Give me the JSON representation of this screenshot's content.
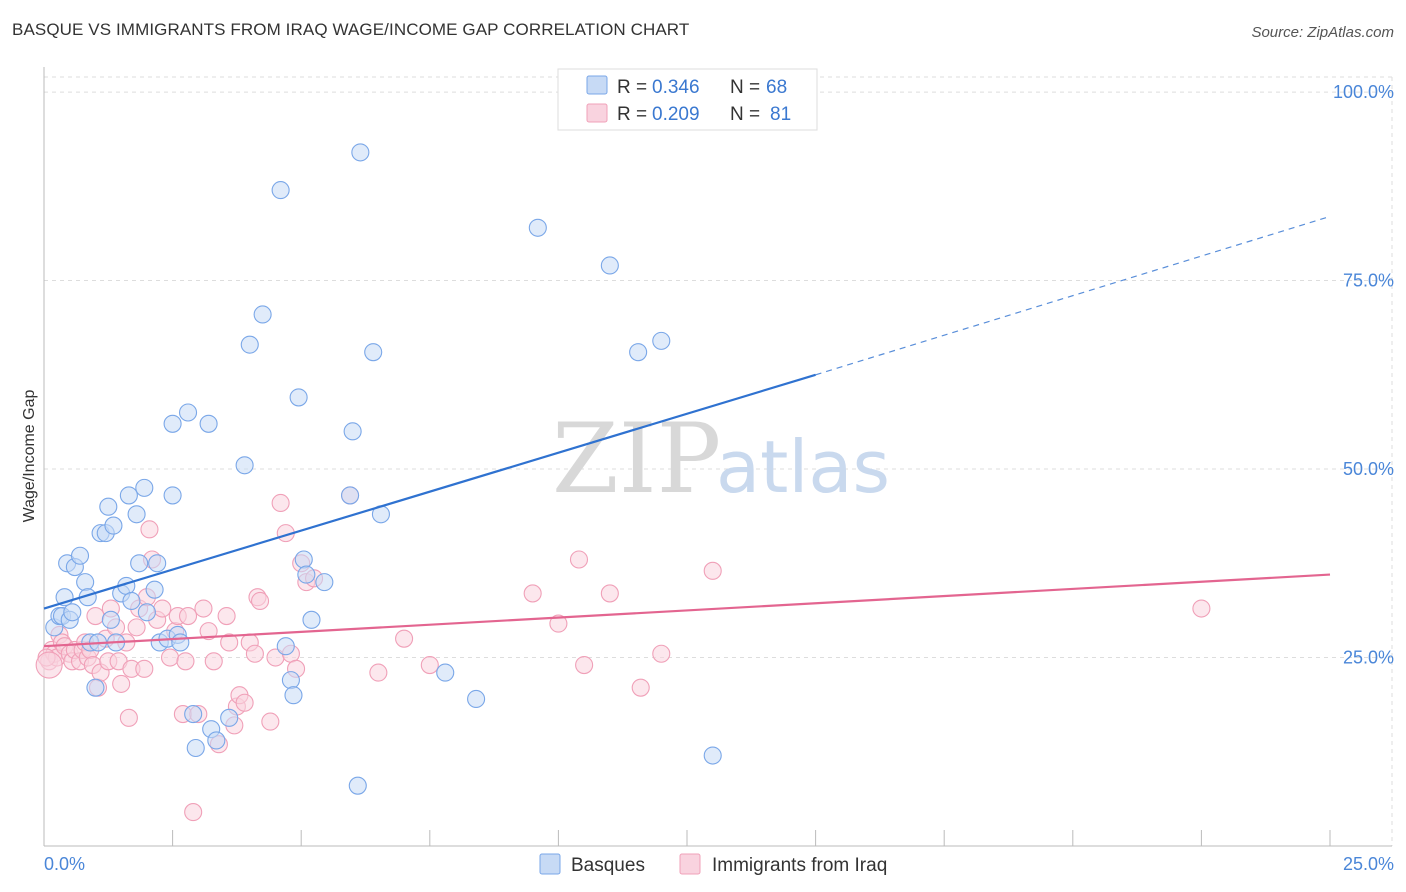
{
  "title": "BASQUE VS IMMIGRANTS FROM IRAQ WAGE/INCOME GAP CORRELATION CHART",
  "source": "Source: ZipAtlas.com",
  "watermark": {
    "zip": "ZIP",
    "atlas": "atlas"
  },
  "chart_data": {
    "type": "scatter",
    "title": "BASQUE VS IMMIGRANTS FROM IRAQ WAGE/INCOME GAP CORRELATION CHART",
    "xlabel": "",
    "ylabel": "Wage/Income Gap",
    "xlim": [
      0,
      25
    ],
    "ylim": [
      0,
      102
    ],
    "x_tick_labels": {
      "left": "0.0%",
      "right": "25.0%"
    },
    "y_ticks": [
      {
        "value": 25,
        "label": "25.0%"
      },
      {
        "value": 50,
        "label": "50.0%"
      },
      {
        "value": 75,
        "label": "75.0%"
      },
      {
        "value": 100,
        "label": "100.0%"
      }
    ],
    "legend": {
      "position": "top-center",
      "rows": [
        {
          "r_label": "R =",
          "r_value": "0.346",
          "n_label": "N =",
          "n_value": "68"
        },
        {
          "r_label": "R =",
          "r_value": "0.209",
          "n_label": "N =",
          "n_value": "81"
        }
      ]
    },
    "series": [
      {
        "name": "Basques",
        "color": "#7aa7e8",
        "fill": "#c7daf5",
        "line_color": "#2f72d0",
        "trend": {
          "x0": 0,
          "y0": 31.5,
          "x1": 15,
          "y1": 62.5,
          "x_extend": 25,
          "y_extend": 83.5
        },
        "points": [
          [
            0.2,
            29
          ],
          [
            0.3,
            30.5
          ],
          [
            0.35,
            30.5
          ],
          [
            0.4,
            33
          ],
          [
            0.45,
            37.5
          ],
          [
            0.5,
            30
          ],
          [
            0.55,
            31
          ],
          [
            0.6,
            37
          ],
          [
            0.8,
            35
          ],
          [
            0.85,
            33
          ],
          [
            0.9,
            27
          ],
          [
            1.0,
            21
          ],
          [
            1.1,
            41.5
          ],
          [
            1.2,
            41.5
          ],
          [
            1.25,
            45
          ],
          [
            1.35,
            42.5
          ],
          [
            1.4,
            27
          ],
          [
            1.5,
            33.5
          ],
          [
            1.6,
            34.5
          ],
          [
            1.65,
            46.5
          ],
          [
            1.8,
            44
          ],
          [
            1.85,
            37.5
          ],
          [
            1.95,
            47.5
          ],
          [
            2.0,
            31
          ],
          [
            2.2,
            37.5
          ],
          [
            2.25,
            27
          ],
          [
            2.4,
            27.5
          ],
          [
            2.5,
            56
          ],
          [
            2.5,
            46.5
          ],
          [
            2.6,
            28
          ],
          [
            2.65,
            27
          ],
          [
            2.8,
            57.5
          ],
          [
            2.9,
            17.5
          ],
          [
            2.95,
            13
          ],
          [
            3.2,
            56
          ],
          [
            3.25,
            15.5
          ],
          [
            3.35,
            14
          ],
          [
            3.9,
            50.5
          ],
          [
            4.0,
            66.5
          ],
          [
            4.25,
            70.5
          ],
          [
            4.6,
            87
          ],
          [
            4.7,
            26.5
          ],
          [
            4.8,
            22
          ],
          [
            4.85,
            20
          ],
          [
            4.95,
            59.5
          ],
          [
            5.05,
            38
          ],
          [
            5.1,
            36
          ],
          [
            5.2,
            30
          ],
          [
            5.45,
            35
          ],
          [
            5.95,
            46.5
          ],
          [
            6.0,
            55
          ],
          [
            6.1,
            8
          ],
          [
            6.15,
            92
          ],
          [
            6.4,
            65.5
          ],
          [
            6.55,
            44
          ],
          [
            7.8,
            23
          ],
          [
            8.4,
            19.5
          ],
          [
            9.6,
            82
          ],
          [
            11.0,
            77
          ],
          [
            11.55,
            65.5
          ],
          [
            12.0,
            67
          ],
          [
            13.0,
            12
          ],
          [
            1.3,
            30
          ],
          [
            1.7,
            32.5
          ],
          [
            2.15,
            34
          ],
          [
            0.7,
            38.5
          ],
          [
            1.05,
            27
          ],
          [
            3.6,
            17
          ]
        ]
      },
      {
        "name": "Immigrants from Iraq",
        "color": "#f0a0b8",
        "fill": "#f9d3df",
        "line_color": "#e36590",
        "trend": {
          "x0": 0,
          "y0": 26.5,
          "x1": 25,
          "y1": 36
        },
        "points": [
          [
            0.1,
            24.5
          ],
          [
            0.15,
            26
          ],
          [
            0.2,
            25.5
          ],
          [
            0.25,
            25
          ],
          [
            0.3,
            28
          ],
          [
            0.35,
            27
          ],
          [
            0.4,
            26.5
          ],
          [
            0.5,
            25.5
          ],
          [
            0.55,
            24.5
          ],
          [
            0.6,
            26
          ],
          [
            0.7,
            24.5
          ],
          [
            0.75,
            26
          ],
          [
            0.8,
            27
          ],
          [
            0.85,
            25
          ],
          [
            0.9,
            26
          ],
          [
            0.95,
            24
          ],
          [
            1.0,
            30.5
          ],
          [
            1.05,
            21
          ],
          [
            1.1,
            23
          ],
          [
            1.2,
            27.5
          ],
          [
            1.25,
            24.5
          ],
          [
            1.3,
            31.5
          ],
          [
            1.4,
            29
          ],
          [
            1.45,
            24.5
          ],
          [
            1.5,
            21.5
          ],
          [
            1.6,
            27
          ],
          [
            1.65,
            17
          ],
          [
            1.7,
            23.5
          ],
          [
            1.8,
            29
          ],
          [
            1.85,
            31.5
          ],
          [
            1.95,
            23.5
          ],
          [
            2.0,
            33
          ],
          [
            2.05,
            42
          ],
          [
            2.1,
            38
          ],
          [
            2.2,
            30
          ],
          [
            2.3,
            31.5
          ],
          [
            2.45,
            25
          ],
          [
            2.55,
            28.5
          ],
          [
            2.6,
            30.5
          ],
          [
            2.7,
            17.5
          ],
          [
            2.75,
            24.5
          ],
          [
            2.8,
            30.5
          ],
          [
            2.9,
            4.5
          ],
          [
            3.0,
            17.5
          ],
          [
            3.1,
            31.5
          ],
          [
            3.2,
            28.5
          ],
          [
            3.3,
            24.5
          ],
          [
            3.4,
            13.5
          ],
          [
            3.55,
            30.5
          ],
          [
            3.6,
            27
          ],
          [
            3.7,
            16
          ],
          [
            3.75,
            18.5
          ],
          [
            3.8,
            20
          ],
          [
            3.9,
            19
          ],
          [
            4.0,
            27
          ],
          [
            4.1,
            25.5
          ],
          [
            4.15,
            33
          ],
          [
            4.2,
            32.5
          ],
          [
            4.4,
            16.5
          ],
          [
            4.5,
            25
          ],
          [
            4.6,
            45.5
          ],
          [
            4.7,
            41.5
          ],
          [
            4.8,
            25.5
          ],
          [
            4.9,
            23.5
          ],
          [
            5.0,
            37.5
          ],
          [
            5.1,
            35
          ],
          [
            5.25,
            35.5
          ],
          [
            5.95,
            46.5
          ],
          [
            6.5,
            23
          ],
          [
            7.0,
            27.5
          ],
          [
            7.5,
            24
          ],
          [
            9.5,
            33.5
          ],
          [
            10.0,
            29.5
          ],
          [
            10.4,
            38
          ],
          [
            10.5,
            24
          ],
          [
            11.0,
            33.5
          ],
          [
            11.6,
            21
          ],
          [
            12.0,
            25.5
          ],
          [
            13.0,
            36.5
          ],
          [
            22.5,
            31.5
          ],
          [
            0.05,
            25
          ]
        ]
      }
    ]
  }
}
